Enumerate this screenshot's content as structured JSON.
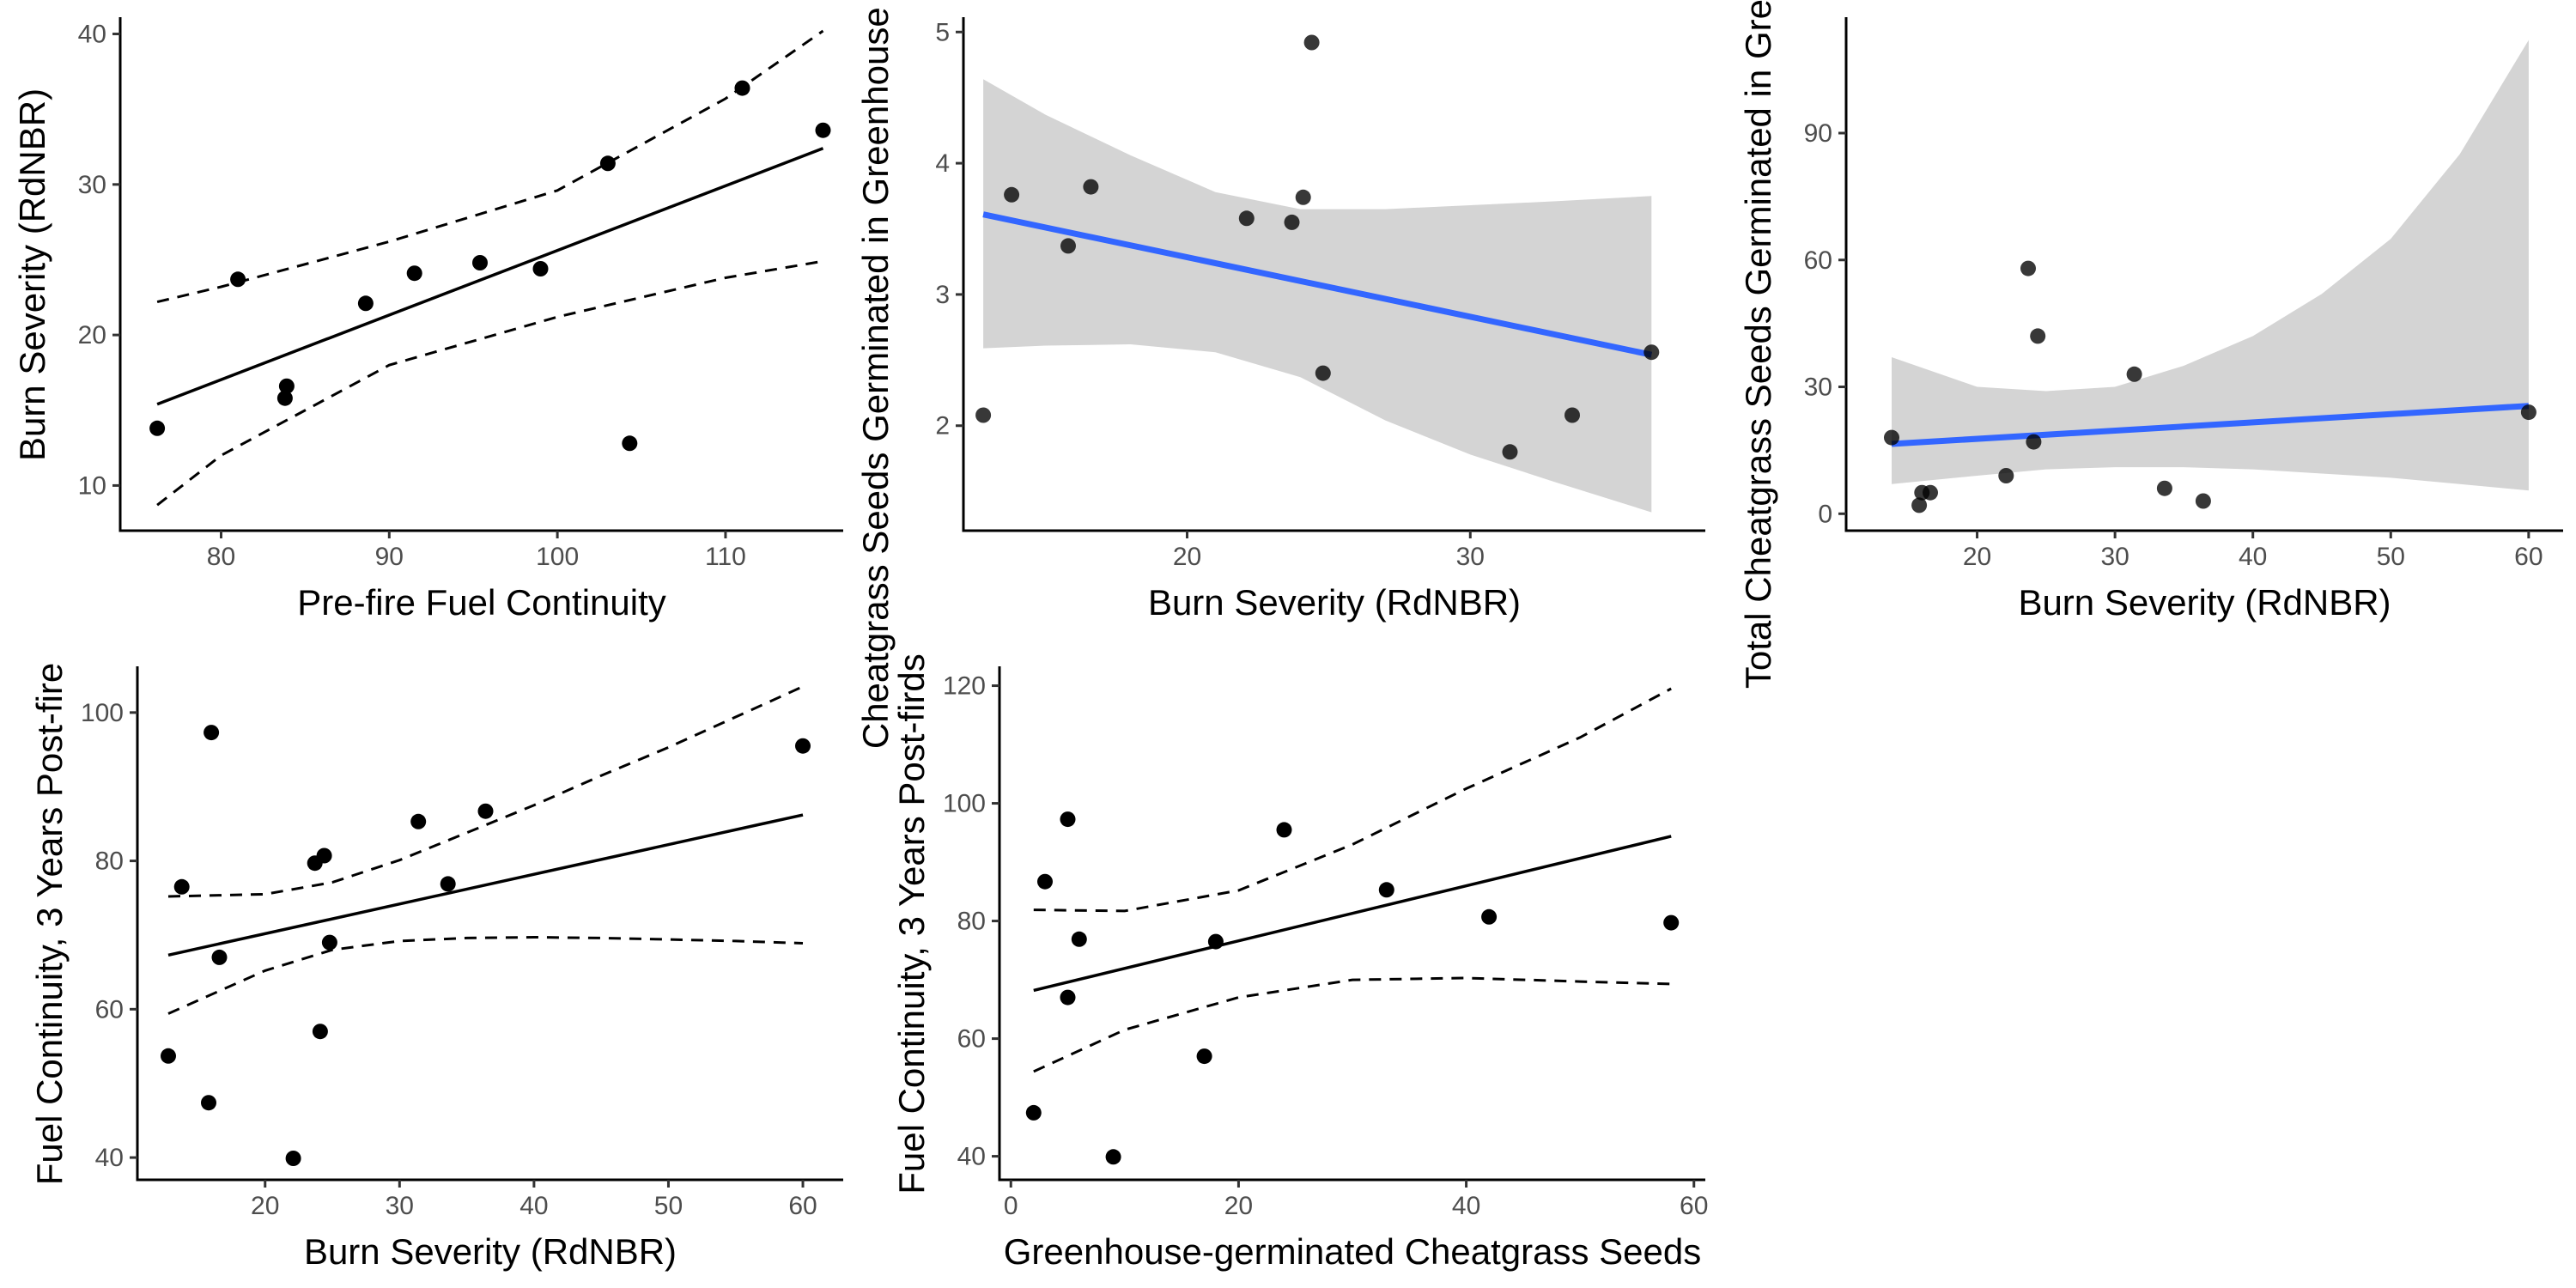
{
  "chart_data": [
    {
      "type": "scatter",
      "xlabel": "Pre-fire Fuel Continuity",
      "ylabel": "Burn Severity (RdNBR)",
      "xlim": [
        74,
        117
      ],
      "ylim": [
        7,
        41
      ],
      "xticks": [
        80,
        90,
        100,
        110
      ],
      "yticks": [
        10,
        20,
        30,
        40
      ],
      "points": [
        [
          76.2,
          13.8
        ],
        [
          81.0,
          23.7
        ],
        [
          83.8,
          15.8
        ],
        [
          83.9,
          16.6
        ],
        [
          88.6,
          22.1
        ],
        [
          91.5,
          24.1
        ],
        [
          95.4,
          24.8
        ],
        [
          99.0,
          24.4
        ],
        [
          103.0,
          31.4
        ],
        [
          104.3,
          12.8
        ],
        [
          111.0,
          36.4
        ],
        [
          115.8,
          33.6
        ]
      ],
      "fit": {
        "style": "solid-black",
        "color": "#000000",
        "x": [
          76.2,
          115.8
        ],
        "y": [
          15.4,
          32.4
        ]
      },
      "ci": {
        "style": "dashed-lines",
        "x": [
          76.2,
          80,
          90,
          100,
          110,
          115.8
        ],
        "lower": [
          8.7,
          12.0,
          18.0,
          21.2,
          23.8,
          24.9
        ],
        "upper": [
          22.2,
          23.2,
          26.2,
          29.6,
          35.7,
          40.2
        ]
      }
    },
    {
      "type": "scatter",
      "xlabel": "Burn Severity (RdNBR)",
      "ylabel": "Cheatgrass Seeds Germinated in Greenhouse (Cheatgrass",
      "xlim": [
        12.1,
        38.3
      ],
      "ylim": [
        1.2,
        5.1
      ],
      "xticks": [
        20,
        30
      ],
      "yticks": [
        2,
        3,
        4,
        5
      ],
      "points": [
        [
          12.8,
          2.08
        ],
        [
          13.8,
          3.76
        ],
        [
          15.8,
          3.37
        ],
        [
          16.6,
          3.82
        ],
        [
          22.1,
          3.58
        ],
        [
          23.7,
          3.55
        ],
        [
          24.1,
          3.74
        ],
        [
          24.4,
          4.92
        ],
        [
          24.8,
          2.4
        ],
        [
          31.4,
          1.8
        ],
        [
          33.6,
          2.08
        ],
        [
          36.4,
          2.56
        ]
      ],
      "fit": {
        "style": "solid-blue",
        "color": "#3366ff",
        "x": [
          12.8,
          36.4
        ],
        "y": [
          3.61,
          2.54
        ]
      },
      "ci": {
        "style": "grey-band",
        "color": "#d4d4d4",
        "x": [
          12.8,
          15,
          18,
          21,
          24,
          27,
          30,
          33,
          36.4
        ],
        "lower": [
          2.59,
          2.61,
          2.62,
          2.56,
          2.37,
          2.04,
          1.78,
          1.57,
          1.34
        ],
        "upper": [
          4.64,
          4.37,
          4.06,
          3.78,
          3.65,
          3.65,
          3.68,
          3.71,
          3.75
        ]
      }
    },
    {
      "type": "scatter",
      "xlabel": "Burn Severity (RdNBR)",
      "ylabel": "Total Cheatgrass Seeds Germinated in Greenhouse",
      "xlim": [
        10.5,
        62.5
      ],
      "ylim": [
        -4,
        117
      ],
      "xticks": [
        20,
        30,
        40,
        50,
        60
      ],
      "yticks": [
        0,
        30,
        60,
        90
      ],
      "points": [
        [
          13.8,
          18
        ],
        [
          15.8,
          2
        ],
        [
          16.0,
          5
        ],
        [
          16.6,
          5
        ],
        [
          22.1,
          9
        ],
        [
          23.7,
          58
        ],
        [
          24.1,
          17
        ],
        [
          24.4,
          42
        ],
        [
          31.4,
          33
        ],
        [
          33.6,
          6
        ],
        [
          36.4,
          3
        ],
        [
          60.0,
          24
        ]
      ],
      "fit": {
        "style": "solid-blue",
        "color": "#3366ff",
        "x": [
          13.8,
          60.0
        ],
        "y": [
          16.5,
          25.5
        ]
      },
      "ci": {
        "style": "grey-band",
        "color": "#d4d4d4",
        "x": [
          13.8,
          20,
          25,
          30,
          35,
          40,
          45,
          50,
          55,
          60
        ],
        "lower": [
          7,
          9,
          10.5,
          11,
          11,
          10.5,
          9.5,
          8.5,
          7,
          5.5
        ],
        "upper": [
          37,
          30,
          29,
          30,
          35,
          42,
          52,
          65,
          85,
          112
        ]
      }
    },
    {
      "type": "scatter",
      "xlabel": "Burn Severity (RdNBR)",
      "ylabel": "Fuel Continuity, 3 Years Post-fire",
      "xlim": [
        10.5,
        63
      ],
      "ylim": [
        37,
        106
      ],
      "xticks": [
        20,
        30,
        40,
        50,
        60
      ],
      "yticks": [
        40,
        60,
        80,
        100
      ],
      "points": [
        [
          12.8,
          53.7
        ],
        [
          13.8,
          76.5
        ],
        [
          15.8,
          47.4
        ],
        [
          16.0,
          97.3
        ],
        [
          16.6,
          67.0
        ],
        [
          22.1,
          39.9
        ],
        [
          23.7,
          79.7
        ],
        [
          24.1,
          57.0
        ],
        [
          24.4,
          80.7
        ],
        [
          24.8,
          69.0
        ],
        [
          31.4,
          85.3
        ],
        [
          33.6,
          76.9
        ],
        [
          36.4,
          86.7
        ],
        [
          60.0,
          95.5
        ]
      ],
      "fit": {
        "style": "solid-black",
        "color": "#000000",
        "x": [
          12.8,
          60.0
        ],
        "y": [
          67.3,
          86.2
        ]
      },
      "ci": {
        "style": "dashed-lines",
        "x": [
          12.8,
          20,
          25,
          30,
          35,
          40,
          45,
          50,
          55,
          60
        ],
        "lower": [
          59.4,
          65.2,
          68.0,
          69.2,
          69.6,
          69.7,
          69.6,
          69.4,
          69.2,
          68.9
        ],
        "upper": [
          75.2,
          75.5,
          77.1,
          80.1,
          83.8,
          87.5,
          91.5,
          95.3,
          99.4,
          103.5
        ]
      }
    },
    {
      "type": "scatter",
      "xlabel": "Greenhouse-germinated Cheatgrass Seeds",
      "ylabel": "Fuel Continuity, 3 Years Post-firds",
      "xlim": [
        -1,
        61
      ],
      "ylim": [
        36,
        123
      ],
      "xticks": [
        0,
        20,
        40,
        60
      ],
      "yticks": [
        40,
        60,
        80,
        100,
        120
      ],
      "points": [
        [
          2,
          47.4
        ],
        [
          3,
          86.7
        ],
        [
          5,
          67.0
        ],
        [
          5,
          97.3
        ],
        [
          6,
          76.9
        ],
        [
          9,
          39.9
        ],
        [
          17,
          57.0
        ],
        [
          18,
          76.5
        ],
        [
          24,
          95.5
        ],
        [
          33,
          85.3
        ],
        [
          42,
          80.7
        ],
        [
          58,
          79.7
        ]
      ],
      "fit": {
        "style": "solid-black",
        "color": "#000000",
        "x": [
          2,
          58
        ],
        "y": [
          68.2,
          94.4
        ]
      },
      "ci": {
        "style": "dashed-lines",
        "x": [
          2,
          10,
          20,
          30,
          40,
          50,
          58
        ],
        "lower": [
          54.4,
          61.5,
          67.0,
          70.0,
          70.3,
          69.7,
          69.3
        ],
        "upper": [
          81.9,
          81.7,
          85.2,
          93.0,
          102.5,
          111.2,
          119.5
        ]
      }
    }
  ]
}
